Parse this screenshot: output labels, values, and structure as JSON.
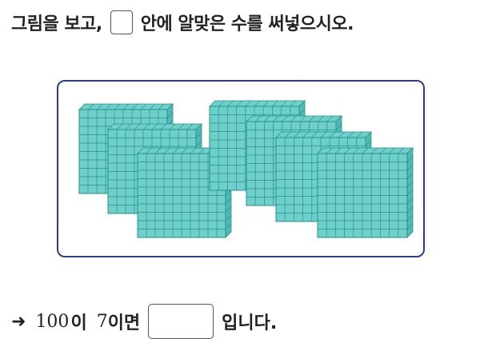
{
  "question": {
    "before_blank": "그림을 보고,",
    "after_blank": "안에 알맞은 수를 써넣으시오."
  },
  "figure": {
    "block_count": 7,
    "block_value": 100,
    "fill_color": "#6fd0cb",
    "line_color": "#2a8f8a",
    "frame_color": "#2c3d8f"
  },
  "answer_line": {
    "arrow": "➜",
    "number": "100",
    "particle": "이",
    "count": "7",
    "count_suffix": "이면",
    "answer_value": "",
    "ending": "입니다."
  }
}
